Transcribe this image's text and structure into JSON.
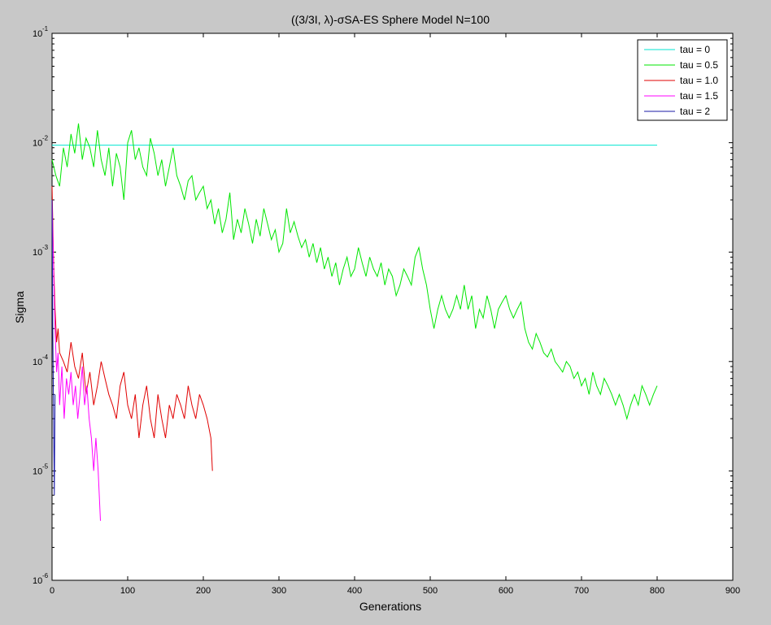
{
  "chart_data": {
    "type": "line",
    "title": "((3/3I, λ)-σSA-ES Sphere Model N=100",
    "xlabel": "Generations",
    "ylabel": "Sigma",
    "xlim": [
      0,
      900
    ],
    "ylim": [
      1e-06,
      0.1
    ],
    "yscale": "log",
    "grid": false,
    "legend_position": "top-right",
    "xticks": [
      0,
      100,
      200,
      300,
      400,
      500,
      600,
      700,
      800,
      900
    ],
    "xtick_labels": [
      "0",
      "100",
      "200",
      "300",
      "400",
      "500",
      "600",
      "700",
      "800",
      "900"
    ],
    "ytick_exponents": [
      -6,
      -5,
      -4,
      -3,
      -2,
      -1
    ],
    "ytick_base": "10",
    "series": [
      {
        "name": "tau = 0",
        "color": "#00e5d0",
        "x": [
          0,
          800
        ],
        "y": [
          0.0095,
          0.0095
        ]
      },
      {
        "name": "tau = 0.5",
        "color": "#00e600",
        "x": [
          0,
          5,
          10,
          15,
          20,
          25,
          30,
          35,
          40,
          45,
          50,
          55,
          60,
          65,
          70,
          75,
          80,
          85,
          90,
          95,
          100,
          105,
          110,
          115,
          120,
          125,
          130,
          135,
          140,
          145,
          150,
          155,
          160,
          165,
          170,
          175,
          180,
          185,
          190,
          195,
          200,
          205,
          210,
          215,
          220,
          225,
          230,
          235,
          240,
          245,
          250,
          255,
          260,
          265,
          270,
          275,
          280,
          285,
          290,
          295,
          300,
          305,
          310,
          315,
          320,
          325,
          330,
          335,
          340,
          345,
          350,
          355,
          360,
          365,
          370,
          375,
          380,
          385,
          390,
          395,
          400,
          405,
          410,
          415,
          420,
          425,
          430,
          435,
          440,
          445,
          450,
          455,
          460,
          465,
          470,
          475,
          480,
          485,
          490,
          495,
          500,
          505,
          510,
          515,
          520,
          525,
          530,
          535,
          540,
          545,
          550,
          555,
          560,
          565,
          570,
          575,
          580,
          585,
          590,
          595,
          600,
          605,
          610,
          615,
          620,
          625,
          630,
          635,
          640,
          645,
          650,
          655,
          660,
          665,
          670,
          675,
          680,
          685,
          690,
          695,
          700,
          705,
          710,
          715,
          720,
          725,
          730,
          735,
          740,
          745,
          750,
          755,
          760,
          765,
          770,
          775,
          780,
          785,
          790,
          795,
          800
        ],
        "y": [
          0.007,
          0.005,
          0.004,
          0.009,
          0.006,
          0.012,
          0.008,
          0.015,
          0.007,
          0.011,
          0.009,
          0.006,
          0.013,
          0.007,
          0.005,
          0.009,
          0.004,
          0.008,
          0.006,
          0.003,
          0.01,
          0.013,
          0.007,
          0.009,
          0.006,
          0.005,
          0.011,
          0.008,
          0.005,
          0.007,
          0.004,
          0.006,
          0.009,
          0.005,
          0.004,
          0.003,
          0.0045,
          0.005,
          0.003,
          0.0035,
          0.004,
          0.0025,
          0.003,
          0.0018,
          0.0025,
          0.0015,
          0.002,
          0.0035,
          0.0013,
          0.002,
          0.0015,
          0.0025,
          0.0018,
          0.0012,
          0.002,
          0.0014,
          0.0025,
          0.0018,
          0.0013,
          0.0016,
          0.001,
          0.0012,
          0.0025,
          0.0015,
          0.0019,
          0.0014,
          0.0011,
          0.0013,
          0.0009,
          0.0012,
          0.0008,
          0.0011,
          0.0007,
          0.0009,
          0.0006,
          0.0008,
          0.0005,
          0.0007,
          0.0009,
          0.0006,
          0.0007,
          0.0011,
          0.0008,
          0.0006,
          0.0009,
          0.0007,
          0.0006,
          0.0008,
          0.0005,
          0.0007,
          0.0006,
          0.0004,
          0.0005,
          0.0007,
          0.0006,
          0.0005,
          0.0009,
          0.0011,
          0.0007,
          0.0005,
          0.0003,
          0.0002,
          0.0003,
          0.0004,
          0.0003,
          0.00025,
          0.0003,
          0.0004,
          0.0003,
          0.0005,
          0.0003,
          0.0004,
          0.0002,
          0.0003,
          0.00025,
          0.0004,
          0.0003,
          0.0002,
          0.0003,
          0.00035,
          0.0004,
          0.0003,
          0.00025,
          0.0003,
          0.00035,
          0.0002,
          0.00015,
          0.00013,
          0.00018,
          0.00015,
          0.00012,
          0.00011,
          0.00013,
          0.0001,
          9e-05,
          8e-05,
          0.0001,
          9e-05,
          7e-05,
          8e-05,
          6e-05,
          7e-05,
          5e-05,
          8e-05,
          6e-05,
          5e-05,
          7e-05,
          6e-05,
          5e-05,
          4e-05,
          5e-05,
          4e-05,
          3e-05,
          4e-05,
          5e-05,
          4e-05,
          6e-05,
          5e-05,
          4e-05,
          5e-05,
          6e-05
        ]
      },
      {
        "name": "tau = 1.0",
        "color": "#e00000",
        "x": [
          0,
          2,
          4,
          6,
          8,
          10,
          15,
          20,
          25,
          30,
          35,
          40,
          45,
          50,
          55,
          60,
          65,
          70,
          75,
          80,
          85,
          90,
          95,
          100,
          105,
          110,
          115,
          120,
          125,
          130,
          135,
          140,
          145,
          150,
          155,
          160,
          165,
          170,
          175,
          180,
          185,
          190,
          195,
          200,
          205,
          210,
          212
        ],
        "y": [
          0.004,
          0.0008,
          0.0003,
          0.00015,
          0.0002,
          0.00012,
          0.0001,
          8e-05,
          0.00015,
          9e-05,
          7e-05,
          0.00012,
          5e-05,
          8e-05,
          4e-05,
          6e-05,
          0.0001,
          7e-05,
          5e-05,
          4e-05,
          3e-05,
          6e-05,
          8e-05,
          4e-05,
          3e-05,
          5e-05,
          2e-05,
          4e-05,
          6e-05,
          3e-05,
          2e-05,
          5e-05,
          3e-05,
          2e-05,
          4e-05,
          3e-05,
          5e-05,
          4e-05,
          3e-05,
          6e-05,
          4e-05,
          3e-05,
          5e-05,
          4e-05,
          3e-05,
          2e-05,
          1e-05
        ]
      },
      {
        "name": "tau = 1.5",
        "color": "#ff00ff",
        "x": [
          0,
          2,
          4,
          6,
          8,
          10,
          13,
          16,
          19,
          22,
          25,
          28,
          31,
          34,
          37,
          40,
          43,
          46,
          49,
          52,
          55,
          58,
          61,
          64
        ],
        "y": [
          0.003,
          0.0007,
          0.0002,
          8e-05,
          0.00012,
          4e-05,
          9e-05,
          3e-05,
          7e-05,
          5e-05,
          8e-05,
          4e-05,
          6e-05,
          3e-05,
          5e-05,
          9e-05,
          4e-05,
          6e-05,
          3e-05,
          2e-05,
          1e-05,
          2e-05,
          1e-05,
          3.5e-06
        ]
      },
      {
        "name": "tau = 2",
        "color": "#1a1aa6",
        "x": [
          0,
          1,
          2,
          3,
          4
        ],
        "y": [
          0.003,
          0.0002,
          3e-05,
          6e-06,
          5e-05
        ]
      }
    ]
  }
}
